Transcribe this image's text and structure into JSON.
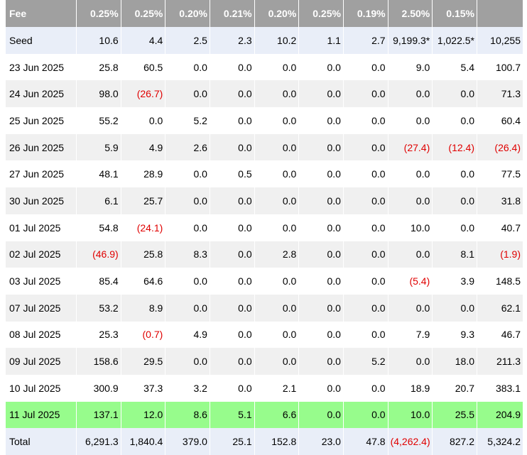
{
  "table": {
    "header": [
      "Fee",
      "0.25%",
      "0.25%",
      "0.20%",
      "0.21%",
      "0.20%",
      "0.25%",
      "0.19%",
      "2.50%",
      "0.15%",
      ""
    ],
    "rows": [
      {
        "style": "seed",
        "cells": [
          "Seed",
          "10.6",
          "4.4",
          "2.5",
          "2.3",
          "10.2",
          "1.1",
          "2.7",
          "9,199.3*",
          "1,022.5*",
          "10,255"
        ]
      },
      {
        "style": "white",
        "cells": [
          "23 Jun 2025",
          "25.8",
          "60.5",
          "0.0",
          "0.0",
          "0.0",
          "0.0",
          "0.0",
          "9.0",
          "5.4",
          "100.7"
        ]
      },
      {
        "style": "alt",
        "cells": [
          "24 Jun 2025",
          "98.0",
          "(26.7)",
          "0.0",
          "0.0",
          "0.0",
          "0.0",
          "0.0",
          "0.0",
          "0.0",
          "71.3"
        ]
      },
      {
        "style": "white",
        "cells": [
          "25 Jun 2025",
          "55.2",
          "0.0",
          "5.2",
          "0.0",
          "0.0",
          "0.0",
          "0.0",
          "0.0",
          "0.0",
          "60.4"
        ]
      },
      {
        "style": "alt",
        "cells": [
          "26 Jun 2025",
          "5.9",
          "4.9",
          "2.6",
          "0.0",
          "0.0",
          "0.0",
          "0.0",
          "(27.4)",
          "(12.4)",
          "(26.4)"
        ]
      },
      {
        "style": "white",
        "cells": [
          "27 Jun 2025",
          "48.1",
          "28.9",
          "0.0",
          "0.5",
          "0.0",
          "0.0",
          "0.0",
          "0.0",
          "0.0",
          "77.5"
        ]
      },
      {
        "style": "alt",
        "cells": [
          "30 Jun 2025",
          "6.1",
          "25.7",
          "0.0",
          "0.0",
          "0.0",
          "0.0",
          "0.0",
          "0.0",
          "0.0",
          "31.8"
        ]
      },
      {
        "style": "white",
        "cells": [
          "01 Jul 2025",
          "54.8",
          "(24.1)",
          "0.0",
          "0.0",
          "0.0",
          "0.0",
          "0.0",
          "10.0",
          "0.0",
          "40.7"
        ]
      },
      {
        "style": "alt",
        "cells": [
          "02 Jul 2025",
          "(46.9)",
          "25.8",
          "8.3",
          "0.0",
          "2.8",
          "0.0",
          "0.0",
          "0.0",
          "8.1",
          "(1.9)"
        ]
      },
      {
        "style": "white",
        "cells": [
          "03 Jul 2025",
          "85.4",
          "64.6",
          "0.0",
          "0.0",
          "0.0",
          "0.0",
          "0.0",
          "(5.4)",
          "3.9",
          "148.5"
        ]
      },
      {
        "style": "alt",
        "cells": [
          "07 Jul 2025",
          "53.2",
          "8.9",
          "0.0",
          "0.0",
          "0.0",
          "0.0",
          "0.0",
          "0.0",
          "0.0",
          "62.1"
        ]
      },
      {
        "style": "white",
        "cells": [
          "08 Jul 2025",
          "25.3",
          "(0.7)",
          "4.9",
          "0.0",
          "0.0",
          "0.0",
          "0.0",
          "7.9",
          "9.3",
          "46.7"
        ]
      },
      {
        "style": "alt",
        "cells": [
          "09 Jul 2025",
          "158.6",
          "29.5",
          "0.0",
          "0.0",
          "0.0",
          "0.0",
          "5.2",
          "0.0",
          "18.0",
          "211.3"
        ]
      },
      {
        "style": "white",
        "cells": [
          "10 Jul 2025",
          "300.9",
          "37.3",
          "3.2",
          "0.0",
          "2.1",
          "0.0",
          "0.0",
          "18.9",
          "20.7",
          "383.1"
        ]
      },
      {
        "style": "hl",
        "cells": [
          "11 Jul 2025",
          "137.1",
          "12.0",
          "8.6",
          "5.1",
          "6.6",
          "0.0",
          "0.0",
          "10.0",
          "25.5",
          "204.9"
        ]
      },
      {
        "style": "total",
        "cells": [
          "Total",
          "6,291.3",
          "1,840.4",
          "379.0",
          "25.1",
          "152.8",
          "23.0",
          "47.8",
          "(4,262.4)",
          "827.2",
          "5,324.2"
        ]
      }
    ]
  },
  "colors": {
    "header_bg": "#a0a0a0",
    "highlight_row": "#97fc8c",
    "negative_text": "#e00000"
  }
}
